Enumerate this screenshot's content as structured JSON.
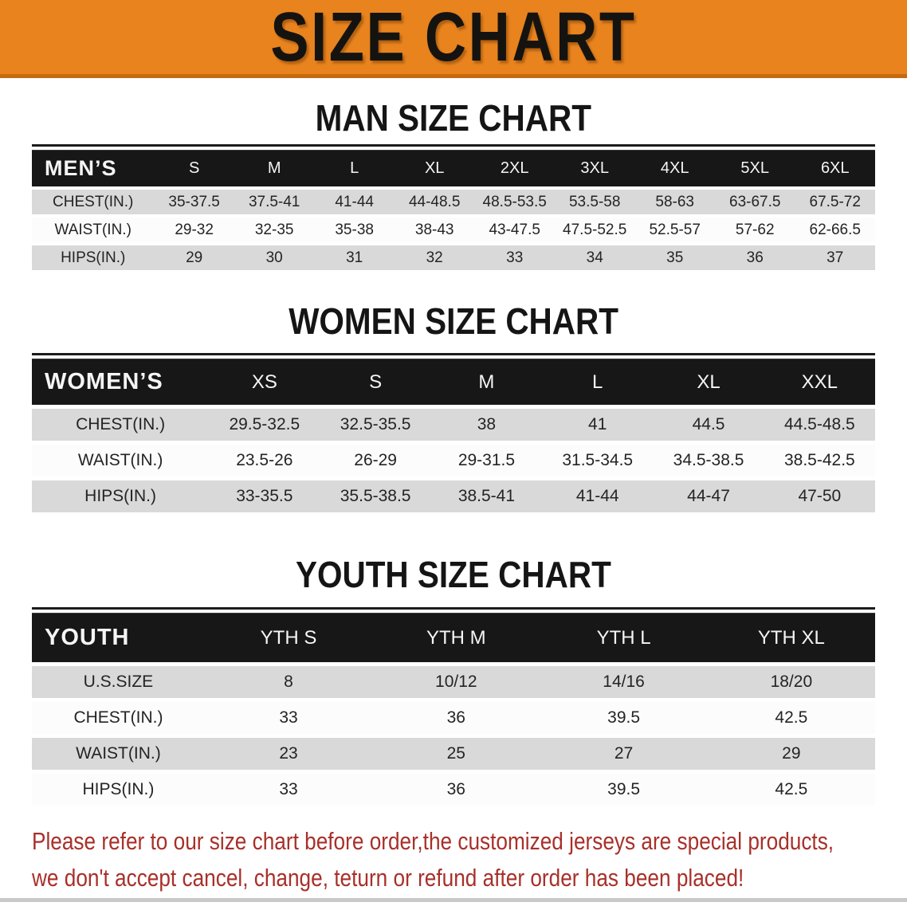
{
  "banner": {
    "title": "SIZE CHART",
    "bg_color": "#e8831e",
    "text_color": "#151310"
  },
  "sections": [
    {
      "heading": "MAN SIZE CHART",
      "table": {
        "header_label": "MEN’S",
        "columns": [
          "S",
          "M",
          "L",
          "XL",
          "2XL",
          "3XL",
          "4XL",
          "5XL",
          "6XL"
        ],
        "rows": [
          {
            "label": "CHEST(IN.)",
            "values": [
              "35-37.5",
              "37.5-41",
              "41-44",
              "44-48.5",
              "48.5-53.5",
              "53.5-58",
              "58-63",
              "63-67.5",
              "67.5-72"
            ]
          },
          {
            "label": "WAIST(IN.)",
            "values": [
              "29-32",
              "32-35",
              "35-38",
              "38-43",
              "43-47.5",
              "47.5-52.5",
              "52.5-57",
              "57-62",
              "62-66.5"
            ]
          },
          {
            "label": "HIPS(IN.)",
            "values": [
              "29",
              "30",
              "31",
              "32",
              "33",
              "34",
              "35",
              "36",
              "37"
            ]
          }
        ]
      }
    },
    {
      "heading": "WOMEN SIZE CHART",
      "table": {
        "header_label": "WOMEN’S",
        "columns": [
          "XS",
          "S",
          "M",
          "L",
          "XL",
          "XXL"
        ],
        "rows": [
          {
            "label": "CHEST(IN.)",
            "values": [
              "29.5-32.5",
              "32.5-35.5",
              "38",
              "41",
              "44.5",
              "44.5-48.5"
            ]
          },
          {
            "label": "WAIST(IN.)",
            "values": [
              "23.5-26",
              "26-29",
              "29-31.5",
              "31.5-34.5",
              "34.5-38.5",
              "38.5-42.5"
            ]
          },
          {
            "label": "HIPS(IN.)",
            "values": [
              "33-35.5",
              "35.5-38.5",
              "38.5-41",
              "41-44",
              "44-47",
              "47-50"
            ]
          }
        ]
      }
    },
    {
      "heading": "YOUTH SIZE CHART",
      "table": {
        "header_label": "YOUTH",
        "columns": [
          "YTH S",
          "YTH M",
          "YTH L",
          "YTH XL"
        ],
        "rows": [
          {
            "label": "U.S.SIZE",
            "values": [
              "8",
              "10/12",
              "14/16",
              "18/20"
            ]
          },
          {
            "label": "CHEST(IN.)",
            "values": [
              "33",
              "36",
              "39.5",
              "42.5"
            ]
          },
          {
            "label": "WAIST(IN.)",
            "values": [
              "23",
              "25",
              "27",
              "29"
            ]
          },
          {
            "label": "HIPS(IN.)",
            "values": [
              "33",
              "36",
              "39.5",
              "42.5"
            ]
          }
        ]
      }
    }
  ],
  "disclaimer": {
    "line1": "Please refer to our size chart before order,the customized jerseys are special products,",
    "line2": "we don't accept cancel, change, teturn or refund after order has been placed!",
    "color": "#a8302a"
  }
}
